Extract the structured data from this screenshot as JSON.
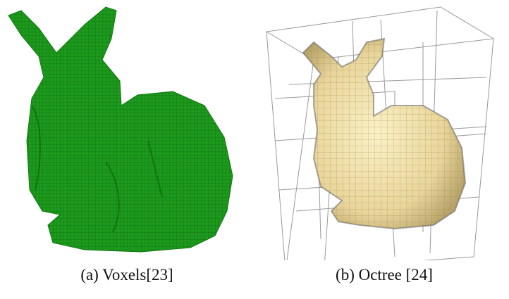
{
  "figures": [
    {
      "caption": "(a) Voxels[23]"
    },
    {
      "caption": "(b) Octree [24]"
    }
  ]
}
